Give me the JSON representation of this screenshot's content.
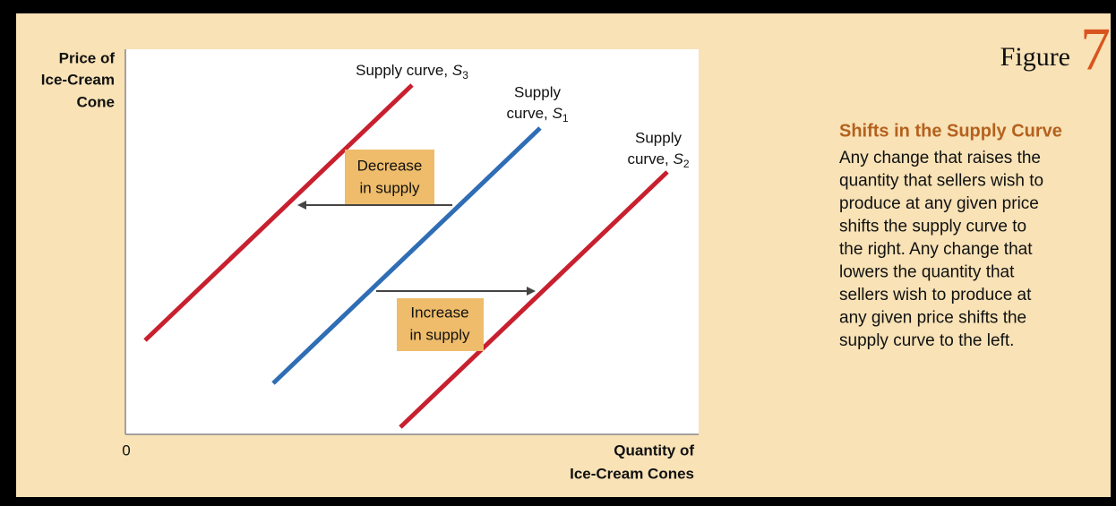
{
  "y_axis_label": [
    "Price of",
    "Ice-Cream",
    "Cone"
  ],
  "origin": "0",
  "x_axis_label": [
    "Quantity of",
    "Ice-Cream Cones"
  ],
  "curves": [
    {
      "lines": [
        "Supply curve, "
      ],
      "symbol": "S",
      "sub": "3"
    },
    {
      "lines": [
        "Supply",
        "curve, "
      ],
      "symbol": "S",
      "sub": "1"
    },
    {
      "lines": [
        "Supply",
        "curve, "
      ],
      "symbol": "S",
      "sub": "2"
    }
  ],
  "annotations": [
    [
      "Decrease",
      "in supply"
    ],
    [
      "Increase",
      "in supply"
    ]
  ],
  "figure": {
    "word": "Figure",
    "number": "7"
  },
  "caption": {
    "title": "Shifts in the Supply Curve",
    "lines": [
      "Any change that raises the",
      "quantity that sellers wish to",
      "produce at any given price",
      "shifts the supply curve to",
      "the right. Any change that",
      "lowers the quantity that",
      "sellers wish to produce at",
      "any given price shifts the",
      "supply curve to the left."
    ]
  }
}
